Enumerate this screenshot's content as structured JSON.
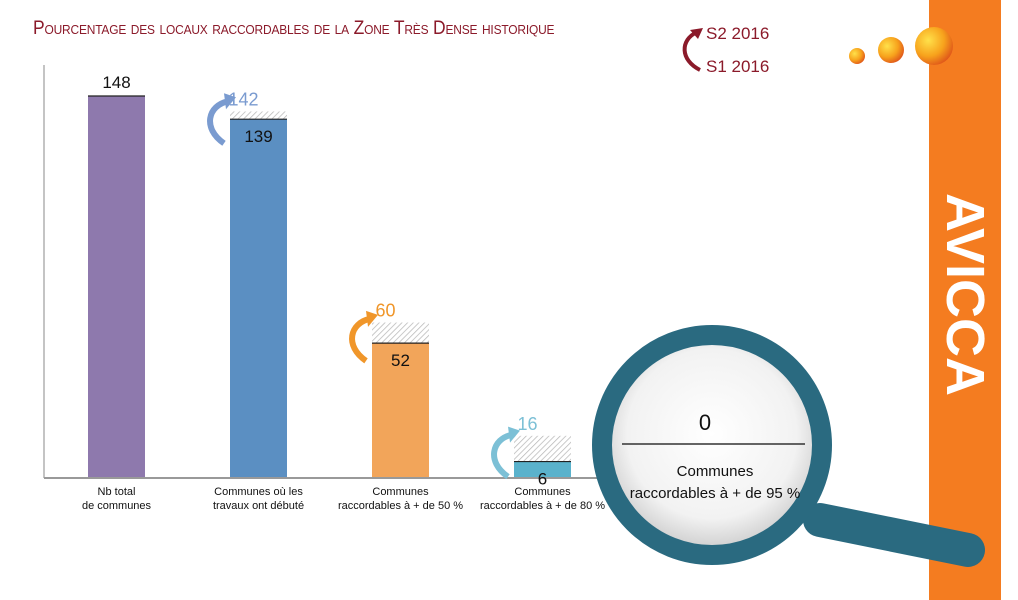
{
  "title": "Pourcentage des locaux raccordables de la Zone Très Dense historique",
  "brand": "AVICCA",
  "chart_data": {
    "type": "bar",
    "title": "Pourcentage des locaux raccordables de la Zone Très Dense historique",
    "categories": [
      "Nb total\nde communes",
      "Communes où les\ntravaux ont débuté",
      "Communes\nraccordables à + de 50 %",
      "Communes\nraccordables à + de 80 %"
    ],
    "category_labels": [
      [
        "Nb total",
        "de communes"
      ],
      [
        "Communes où les",
        "travaux ont débuté"
      ],
      [
        "Communes",
        "raccordables à + de 50 %"
      ],
      [
        "Communes",
        "raccordables à + de 80 %"
      ]
    ],
    "series": [
      {
        "name": "S1 2016",
        "values": [
          148,
          139,
          52,
          6
        ]
      },
      {
        "name": "S2 2016",
        "values": [
          148,
          142,
          60,
          16
        ]
      }
    ],
    "colors": [
      "#8e79ad",
      "#5b8fc2",
      "#f2a55a",
      "#5ab2cc"
    ],
    "label_colors": [
      "#111111",
      "#7a9bd0",
      "#f0962a",
      "#7cc0d6"
    ],
    "ylim": [
      0,
      160
    ],
    "grid": false,
    "legend": "top-right",
    "inset": {
      "value": 0,
      "label": "Communes raccordables à + de 95 %"
    }
  },
  "colors": {
    "title": "#8b1a2a",
    "sidebar": "#f47c20",
    "magnifier": "#2a6a80"
  }
}
